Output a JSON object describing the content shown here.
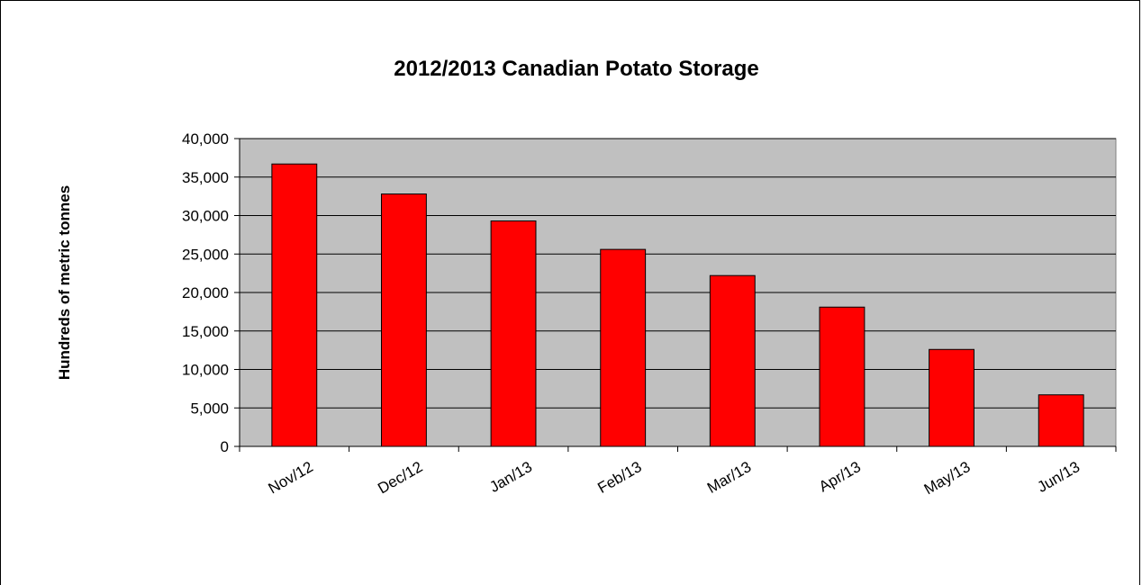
{
  "chart_data": {
    "type": "bar",
    "title": "2012/2013 Canadian  Potato Storage",
    "xlabel": "",
    "ylabel": "Hundreds of metric tonnes",
    "categories": [
      "Nov/12",
      "Dec/12",
      "Jan/13",
      "Feb/13",
      "Mar/13",
      "Apr/13",
      "May/13",
      "Jun/13"
    ],
    "values": [
      36700,
      32800,
      29300,
      25600,
      22200,
      18100,
      12600,
      6700
    ],
    "ylim": [
      0,
      40000
    ],
    "yticks": [
      0,
      5000,
      10000,
      15000,
      20000,
      25000,
      30000,
      35000,
      40000
    ],
    "ytick_labels": [
      "0",
      "5,000",
      "10,000",
      "15,000",
      "20,000",
      "25,000",
      "30,000",
      "35,000",
      "40,000"
    ],
    "grid": true,
    "legend": "none",
    "colors": {
      "bar": "#ff0000",
      "plot_background": "#c0c0c0",
      "grid": "#000000"
    }
  }
}
